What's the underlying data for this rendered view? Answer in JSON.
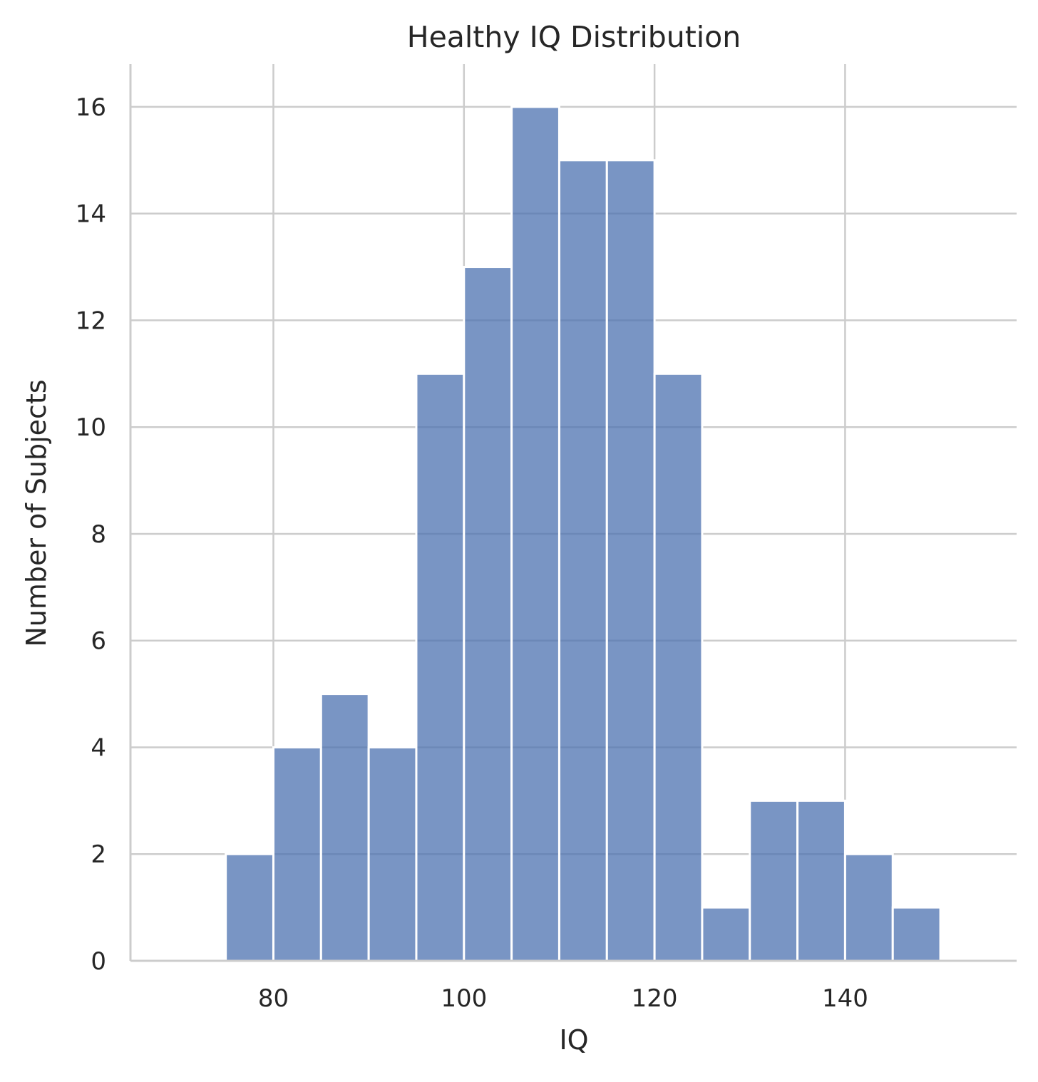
{
  "chart_data": {
    "type": "bar",
    "title": "Healthy IQ Distribution",
    "xlabel": "IQ",
    "ylabel": "Number of Subjects",
    "xlim": [
      65,
      158
    ],
    "ylim": [
      0,
      16.8
    ],
    "xticks": [
      80,
      100,
      120,
      140
    ],
    "yticks": [
      0,
      2,
      4,
      6,
      8,
      10,
      12,
      14,
      16
    ],
    "grid": true,
    "bar_color": "#4c72b0",
    "bar_opacity": 0.75,
    "bins": [
      {
        "start": 75,
        "end": 80,
        "count": 2
      },
      {
        "start": 80,
        "end": 85,
        "count": 4
      },
      {
        "start": 85,
        "end": 90,
        "count": 5
      },
      {
        "start": 90,
        "end": 95,
        "count": 4
      },
      {
        "start": 95,
        "end": 100,
        "count": 11
      },
      {
        "start": 100,
        "end": 105,
        "count": 13
      },
      {
        "start": 105,
        "end": 110,
        "count": 16
      },
      {
        "start": 110,
        "end": 115,
        "count": 15
      },
      {
        "start": 115,
        "end": 120,
        "count": 15
      },
      {
        "start": 120,
        "end": 125,
        "count": 11
      },
      {
        "start": 125,
        "end": 130,
        "count": 1
      },
      {
        "start": 130,
        "end": 135,
        "count": 3
      },
      {
        "start": 135,
        "end": 140,
        "count": 3
      },
      {
        "start": 140,
        "end": 145,
        "count": 2
      },
      {
        "start": 145,
        "end": 150,
        "count": 1
      }
    ]
  }
}
